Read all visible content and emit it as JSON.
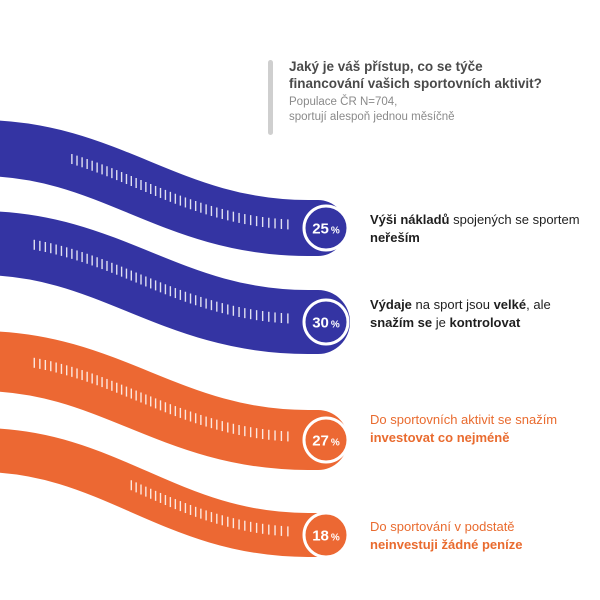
{
  "question": {
    "line1": "Jaký je váš přístup, co se týče",
    "line2": "financování vašich sportovních aktivit?",
    "sub1": "Populace ČR N=704,",
    "sub2": "sportují alespoň jednou měsíčně"
  },
  "colors": {
    "blue": "#3434a3",
    "orange": "#ec6833",
    "dark_text": "#1f1f1f",
    "orange_text": "#e96b2f"
  },
  "chart_data": {
    "type": "bar",
    "categories": [
      "Výši nákladů spojených se sportem neřeším",
      "Výdaje na sport jsou velké, ale snažím se je kontrolovat",
      "Do sportovních aktivit se snažím investovat co nejméně",
      "Do sportování v podstatě neinvestuji žádné peníze"
    ],
    "values": [
      25,
      30,
      27,
      18
    ],
    "unit": "%"
  },
  "items": [
    {
      "pct": "25",
      "unit": "%",
      "color": "blue",
      "parts": [
        {
          "t": "Výši nákladů",
          "b": true
        },
        {
          "t": " spojených se sportem ",
          "b": false
        },
        {
          "t": "neřeším",
          "b": true
        }
      ]
    },
    {
      "pct": "30",
      "unit": "%",
      "color": "blue",
      "parts": [
        {
          "t": "Výdaje",
          "b": true
        },
        {
          "t": " na sport jsou ",
          "b": false
        },
        {
          "t": "velké",
          "b": true
        },
        {
          "t": ", ale ",
          "b": false
        },
        {
          "t": "snažím se",
          "b": true
        },
        {
          "t": " je ",
          "b": false
        },
        {
          "t": "kontrolovat",
          "b": true
        }
      ]
    },
    {
      "pct": "27",
      "unit": "%",
      "color": "orange",
      "parts": [
        {
          "t": "Do sportovních aktivit se snažím ",
          "b": false
        },
        {
          "t": "investovat co nejméně",
          "b": true
        }
      ]
    },
    {
      "pct": "18",
      "unit": "%",
      "color": "orange",
      "parts": [
        {
          "t": "Do sportování v podstatě ",
          "b": false
        },
        {
          "t": "neinvestuji žádné peníze",
          "b": true
        }
      ]
    }
  ]
}
